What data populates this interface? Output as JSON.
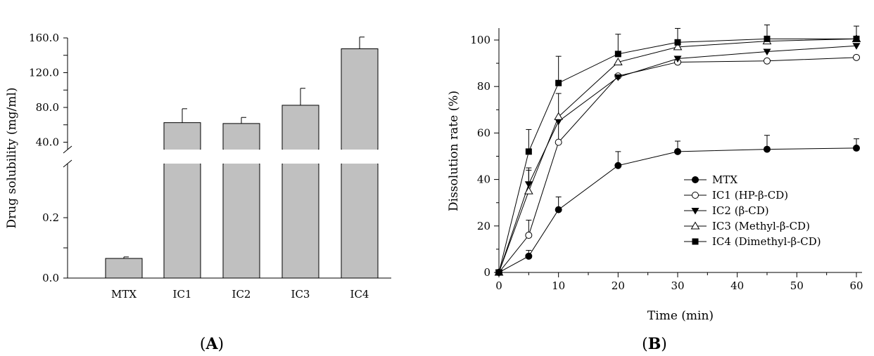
{
  "chart_data": [
    {
      "type": "bar",
      "panel_label": "A",
      "categories": [
        "MTX",
        "IC1",
        "IC2",
        "IC3",
        "IC4"
      ],
      "values": [
        0.065,
        62.5,
        61.5,
        82.5,
        147.5
      ],
      "errors": [
        0.005,
        16.0,
        7.0,
        19.5,
        13.5
      ],
      "ylabel": "Drug solubility (mg/ml)",
      "axis_break": true,
      "ylim_lower": [
        0.0,
        0.3
      ],
      "yticks_lower": [
        "0.0",
        "0.2"
      ],
      "ylim_upper": [
        30.0,
        160.0
      ],
      "yticks_upper": [
        "40.0",
        "80.0",
        "120.0",
        "160.0"
      ],
      "bar_color": "#c0c0c0"
    },
    {
      "type": "line",
      "panel_label": "B",
      "xlabel": "Time (min)",
      "ylabel": "Dissolution rate (%)",
      "xlim": [
        0,
        60
      ],
      "ylim": [
        0,
        105
      ],
      "xticks": [
        "0",
        "10",
        "20",
        "30",
        "40",
        "50",
        "60"
      ],
      "yticks": [
        "0",
        "20",
        "40",
        "60",
        "80",
        "100"
      ],
      "x": [
        0,
        5,
        10,
        20,
        30,
        45,
        60
      ],
      "legend_position": "bottom-right",
      "series": [
        {
          "name": "MTX",
          "marker": "circle-filled",
          "values": [
            0,
            7,
            27,
            46,
            52,
            53,
            53.5
          ],
          "errors": [
            0,
            2.5,
            5.5,
            6,
            4.5,
            6,
            4
          ]
        },
        {
          "name": "IC1 (HP-β-CD)",
          "marker": "circle-open",
          "values": [
            0,
            16,
            56,
            84.5,
            90.5,
            91,
            92.5
          ],
          "errors": [
            0,
            6.5,
            10,
            0,
            0,
            0,
            0
          ]
        },
        {
          "name": "IC2 (β-CD)",
          "marker": "triangle-down-filled",
          "values": [
            0,
            38,
            65,
            84,
            92,
            95,
            97.5
          ],
          "errors": [
            0,
            7,
            0,
            0,
            0,
            0,
            0
          ]
        },
        {
          "name": "IC3 (Methyl-β-CD)",
          "marker": "triangle-up-open",
          "values": [
            0,
            35,
            67,
            90.5,
            97,
            99.5,
            100.5
          ],
          "errors": [
            0,
            9,
            10,
            0,
            0,
            0,
            0
          ]
        },
        {
          "name": "IC4 (Dimethyl-β-CD)",
          "marker": "square-filled",
          "values": [
            0,
            52,
            81.5,
            94,
            99,
            100.5,
            100.5
          ],
          "errors": [
            0,
            9.5,
            11.5,
            8.5,
            6,
            6,
            5.5
          ]
        }
      ]
    }
  ]
}
